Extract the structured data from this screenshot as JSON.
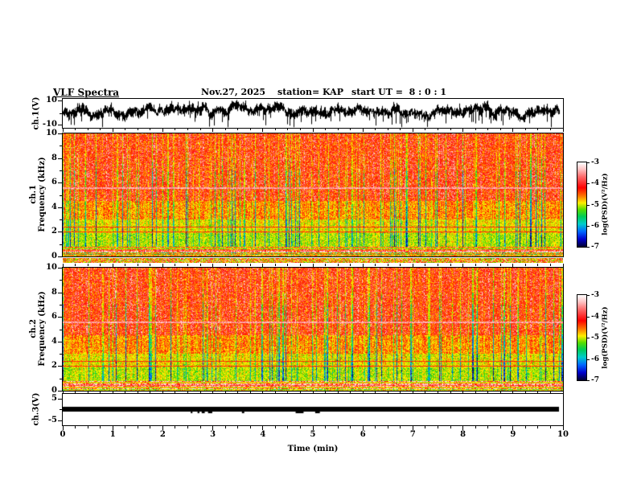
{
  "header": {
    "title": "VLF Spectra",
    "date": "Nov.27, 2025",
    "station": "station= KAP",
    "start_ut": "start UT =  8 : 0 : 1"
  },
  "panels": {
    "ch1_wave": {
      "label": "ch.1(V)",
      "yticks": [
        "10",
        "-10"
      ],
      "ylim": [
        -10,
        10
      ]
    },
    "spec1": {
      "channel": "ch.1",
      "ylabel": "Frequency (kHz)",
      "yticks": [
        "10",
        "8",
        "6",
        "4",
        "2",
        "0"
      ],
      "ylim": [
        0,
        10
      ]
    },
    "spec2": {
      "channel": "ch.2",
      "ylabel": "Frequency (kHz)",
      "yticks": [
        "10",
        "8",
        "6",
        "4",
        "2",
        "0"
      ],
      "ylim": [
        0,
        10
      ]
    },
    "ch3_wave": {
      "label": "ch.3(V)",
      "yticks": [
        "5",
        "-5"
      ],
      "ylim": [
        -7,
        7
      ]
    }
  },
  "xaxis": {
    "label": "Time (min)",
    "ticks": [
      0,
      1,
      2,
      3,
      4,
      5,
      6,
      7,
      8,
      9,
      10
    ],
    "xlim": [
      0,
      10
    ],
    "minor_step": 0.25
  },
  "colorbar": {
    "label": "log(PSD)(V²/Hz)",
    "ticks": [
      "-3",
      "-4",
      "-5",
      "-6",
      "-7"
    ],
    "top_value": -3,
    "bottom_value": -7
  },
  "chart_data": [
    {
      "type": "line",
      "panel": "ch.1(V) waveform",
      "xlabel": "Time (min)",
      "xlim": [
        0,
        10
      ],
      "ylabel": "ch.1(V)",
      "ylim": [
        -10,
        10
      ],
      "yticks": [
        10,
        -10
      ],
      "description": "Dense black broadband voltage trace fluctuating around +2 to +4 V with amplitude ~±3 V and frequent sharp downward spikes reaching -8 to -10 V across the whole 0-10 min record."
    },
    {
      "type": "heatmap",
      "panel": "ch.1 spectrogram",
      "xlabel": "Time (min)",
      "xlim": [
        0,
        10
      ],
      "ylabel": "Frequency (kHz)",
      "ylim": [
        0,
        10
      ],
      "yticks": [
        0,
        2,
        4,
        6,
        8,
        10
      ],
      "value_scale": {
        "label": "log(PSD)(V²/Hz)",
        "ticks": [
          -3,
          -4,
          -5,
          -6,
          -7
        ],
        "colormap": "rainbow: white/pink (-3, high) → red → orange → yellow → green → cyan → blue → dark navy (-7, low)"
      },
      "pattern": "Above ~4 kHz mostly red/orange (≈ -3.5 to -4) broken by dense vertical yellow/green streaks; 1-4 kHz mixed yellow/green/cyan (≈ -5) with vertical structure; thin pink/white horizontal line near 5.5 kHz; dark red horizontal lines near 2.4 and 2.0 kHz; horizontally striped yellow/white/red/green bands below ~0.8 kHz."
    },
    {
      "type": "heatmap",
      "panel": "ch.2 spectrogram",
      "xlabel": "Time (min)",
      "xlim": [
        0,
        10
      ],
      "ylabel": "Frequency (kHz)",
      "ylim": [
        0,
        10
      ],
      "yticks": [
        0,
        2,
        4,
        6,
        8,
        10
      ],
      "value_scale": {
        "label": "log(PSD)(V²/Hz)",
        "ticks": [
          -3,
          -4,
          -5,
          -6,
          -7
        ],
        "colormap": "rainbow: white/pink (-3, high) → red → orange → yellow → green → cyan → blue → dark navy (-7, low)"
      },
      "pattern": "Same morphology as ch.1: red/orange upper band above 4 kHz with vertical green streaks, green/cyan 1-4 kHz region, dark horizontal lines near 2 kHz, striped bands below ~0.8 kHz."
    },
    {
      "type": "line",
      "panel": "ch.3(V) waveform",
      "xlabel": "Time (min)",
      "xlim": [
        0,
        10
      ],
      "ylabel": "ch.3(V)",
      "ylim": [
        -7,
        7
      ],
      "yticks": [
        5,
        -5
      ],
      "description": "Saturated flat thick black band around 0 V (≈ +1 to -1 V) spanning the full 0-10 min record, with a few tiny downward notches near 4-6 min."
    }
  ]
}
